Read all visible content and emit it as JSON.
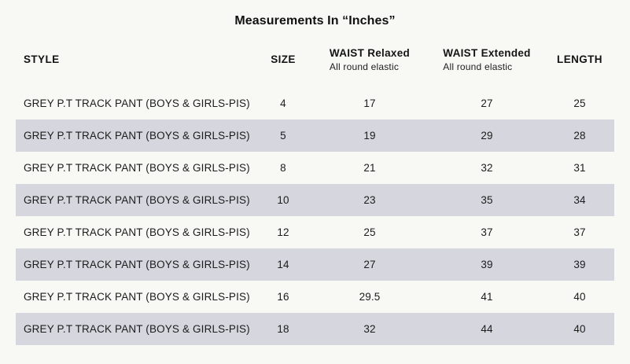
{
  "title": "Measurements In “Inches”",
  "table": {
    "headers": {
      "style": "STYLE",
      "size": "SIZE",
      "waist_relaxed_title": "WAIST Relaxed",
      "waist_relaxed_subtitle": "All round elastic",
      "waist_extended_title": "WAIST Extended",
      "waist_extended_subtitle": "All round elastic",
      "length": "LENGTH"
    },
    "rows": [
      {
        "style": "GREY P.T TRACK PANT (BOYS & GIRLS-PIS)",
        "size": "4",
        "waist_relaxed": "17",
        "waist_extended": "27",
        "length": "25"
      },
      {
        "style": "GREY P.T TRACK PANT (BOYS & GIRLS-PIS)",
        "size": "5",
        "waist_relaxed": "19",
        "waist_extended": "29",
        "length": "28"
      },
      {
        "style": "GREY P.T TRACK PANT (BOYS & GIRLS-PIS)",
        "size": "8",
        "waist_relaxed": "21",
        "waist_extended": "32",
        "length": "31"
      },
      {
        "style": "GREY P.T TRACK PANT (BOYS & GIRLS-PIS)",
        "size": "10",
        "waist_relaxed": "23",
        "waist_extended": "35",
        "length": "34"
      },
      {
        "style": "GREY P.T TRACK PANT (BOYS & GIRLS-PIS)",
        "size": "12",
        "waist_relaxed": "25",
        "waist_extended": "37",
        "length": "37"
      },
      {
        "style": "GREY P.T TRACK PANT (BOYS & GIRLS-PIS)",
        "size": "14",
        "waist_relaxed": "27",
        "waist_extended": "39",
        "length": "39"
      },
      {
        "style": "GREY P.T TRACK PANT (BOYS & GIRLS-PIS)",
        "size": "16",
        "waist_relaxed": "29.5",
        "waist_extended": "41",
        "length": "40"
      },
      {
        "style": "GREY P.T TRACK PANT (BOYS & GIRLS-PIS)",
        "size": "18",
        "waist_relaxed": "32",
        "waist_extended": "44",
        "length": "40"
      }
    ]
  },
  "colors": {
    "page_background": "#f8f8f4",
    "shaded_row": "#d5d6de",
    "text": "#1c1c1c"
  }
}
